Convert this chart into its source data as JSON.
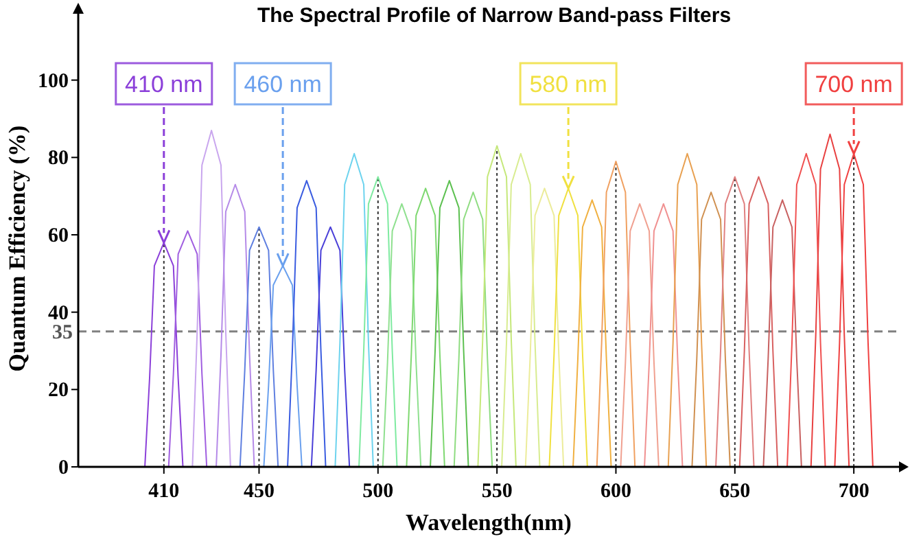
{
  "chart_data": {
    "type": "line",
    "title": "The Spectral Profile of Narrow Band-pass Filters",
    "xlabel": "Wavelength(nm)",
    "ylabel": "Quantum Efficiency (%)",
    "xlim": [
      374,
      719
    ],
    "xticks": [
      410,
      450,
      500,
      550,
      600,
      650,
      700
    ],
    "ylim": [
      0,
      120
    ],
    "yticks": [
      0,
      20,
      40,
      60,
      80,
      100
    ],
    "marker": "none",
    "line_style": "solid",
    "grid": false,
    "ref_lines": [
      {
        "axis": "y",
        "value": 35,
        "label": "35",
        "color": "#808080",
        "line_style": "dashed"
      },
      {
        "axis": "x",
        "value": 410,
        "color": "#333333",
        "line_style": "dotted"
      },
      {
        "axis": "x",
        "value": 450,
        "color": "#333333",
        "line_style": "dotted"
      },
      {
        "axis": "x",
        "value": 500,
        "color": "#333333",
        "line_style": "dotted"
      },
      {
        "axis": "x",
        "value": 550,
        "color": "#333333",
        "line_style": "dotted"
      },
      {
        "axis": "x",
        "value": 600,
        "color": "#333333",
        "line_style": "dotted"
      },
      {
        "axis": "x",
        "value": 650,
        "color": "#333333",
        "line_style": "dotted"
      },
      {
        "axis": "x",
        "value": 700,
        "color": "#333333",
        "line_style": "dotted"
      }
    ],
    "annotations": [
      {
        "text": "410 nm",
        "x": 410,
        "y": 58
      },
      {
        "text": "460 nm",
        "x": 460,
        "y": 52
      },
      {
        "text": "580 nm",
        "x": 580,
        "y": 72
      },
      {
        "text": "700 nm",
        "x": 700,
        "y": 81
      }
    ],
    "series": [
      {
        "color": "#8b3fd9",
        "x": [
          402,
          404,
          406,
          410,
          414,
          416,
          418
        ],
        "values": [
          0,
          23,
          52,
          58,
          52,
          23,
          0
        ]
      },
      {
        "color": "#a05ee0",
        "x": [
          412,
          414,
          416,
          420,
          424,
          426,
          428
        ],
        "values": [
          0,
          24,
          55,
          61,
          55,
          24,
          0
        ]
      },
      {
        "color": "#c9a6ee",
        "x": [
          422,
          424,
          426,
          430,
          434,
          436,
          438
        ],
        "values": [
          0,
          35,
          78,
          87,
          78,
          35,
          0
        ]
      },
      {
        "color": "#b58ae8",
        "x": [
          432,
          434,
          436,
          440,
          444,
          446,
          448
        ],
        "values": [
          0,
          29,
          66,
          73,
          66,
          29,
          0
        ]
      },
      {
        "color": "#5f7fe0",
        "x": [
          442,
          444,
          446,
          450,
          454,
          456,
          458
        ],
        "values": [
          0,
          25,
          56,
          62,
          56,
          25,
          0
        ]
      },
      {
        "color": "#6aa0ee",
        "x": [
          452,
          454,
          456,
          460,
          464,
          466,
          468
        ],
        "values": [
          0,
          21,
          47,
          52,
          47,
          21,
          0
        ]
      },
      {
        "color": "#3a5ce0",
        "x": [
          462,
          464,
          466,
          470,
          474,
          476,
          478
        ],
        "values": [
          0,
          30,
          67,
          74,
          67,
          30,
          0
        ]
      },
      {
        "color": "#4a3fd8",
        "x": [
          472,
          474,
          476,
          480,
          484,
          486,
          488
        ],
        "values": [
          0,
          25,
          56,
          62,
          56,
          25,
          0
        ]
      },
      {
        "color": "#6dd3ee",
        "x": [
          482,
          484,
          486,
          490,
          494,
          496,
          498
        ],
        "values": [
          0,
          32,
          73,
          81,
          73,
          32,
          0
        ]
      },
      {
        "color": "#7eeaa0",
        "x": [
          492,
          494,
          496,
          500,
          504,
          506,
          508
        ],
        "values": [
          0,
          30,
          68,
          75,
          68,
          30,
          0
        ]
      },
      {
        "color": "#8fe08f",
        "x": [
          502,
          504,
          506,
          510,
          514,
          516,
          518
        ],
        "values": [
          0,
          27,
          61,
          68,
          61,
          27,
          0
        ]
      },
      {
        "color": "#7ed870",
        "x": [
          512,
          514,
          516,
          520,
          524,
          526,
          528
        ],
        "values": [
          0,
          29,
          65,
          72,
          65,
          29,
          0
        ]
      },
      {
        "color": "#5cc050",
        "x": [
          522,
          524,
          526,
          530,
          534,
          536,
          538
        ],
        "values": [
          0,
          30,
          67,
          74,
          67,
          30,
          0
        ]
      },
      {
        "color": "#8edc80",
        "x": [
          532,
          534,
          536,
          540,
          544,
          546,
          548
        ],
        "values": [
          0,
          28,
          64,
          71,
          64,
          28,
          0
        ]
      },
      {
        "color": "#c5e87a",
        "x": [
          542,
          544,
          546,
          550,
          554,
          556,
          558
        ],
        "values": [
          0,
          33,
          75,
          83,
          75,
          33,
          0
        ]
      },
      {
        "color": "#d8ec90",
        "x": [
          552,
          554,
          556,
          560,
          564,
          566,
          568
        ],
        "values": [
          0,
          32,
          73,
          81,
          73,
          32,
          0
        ]
      },
      {
        "color": "#ecec9a",
        "x": [
          562,
          564,
          566,
          570,
          574,
          576,
          578
        ],
        "values": [
          0,
          29,
          65,
          72,
          65,
          29,
          0
        ]
      },
      {
        "color": "#f0e040",
        "x": [
          572,
          574,
          576,
          580,
          584,
          586,
          588
        ],
        "values": [
          0,
          29,
          65,
          72,
          65,
          29,
          0
        ]
      },
      {
        "color": "#f0b040",
        "x": [
          582,
          584,
          586,
          590,
          594,
          596,
          598
        ],
        "values": [
          0,
          28,
          62,
          69,
          62,
          28,
          0
        ]
      },
      {
        "color": "#f0a060",
        "x": [
          592,
          594,
          596,
          600,
          604,
          606,
          608
        ],
        "values": [
          0,
          32,
          71,
          79,
          71,
          32,
          0
        ]
      },
      {
        "color": "#f0a090",
        "x": [
          602,
          604,
          606,
          610,
          614,
          616,
          618
        ],
        "values": [
          0,
          27,
          61,
          68,
          61,
          27,
          0
        ]
      },
      {
        "color": "#f09090",
        "x": [
          612,
          614,
          616,
          620,
          624,
          626,
          628
        ],
        "values": [
          0,
          27,
          61,
          68,
          61,
          27,
          0
        ]
      },
      {
        "color": "#e8a050",
        "x": [
          622,
          624,
          626,
          630,
          634,
          636,
          638
        ],
        "values": [
          0,
          32,
          73,
          81,
          73,
          32,
          0
        ]
      },
      {
        "color": "#d09050",
        "x": [
          632,
          634,
          636,
          640,
          644,
          646,
          648
        ],
        "values": [
          0,
          28,
          64,
          71,
          64,
          28,
          0
        ]
      },
      {
        "color": "#e08080",
        "x": [
          642,
          644,
          646,
          650,
          654,
          656,
          658
        ],
        "values": [
          0,
          30,
          68,
          75,
          68,
          30,
          0
        ]
      },
      {
        "color": "#d86060",
        "x": [
          652,
          654,
          656,
          660,
          664,
          666,
          668
        ],
        "values": [
          0,
          30,
          68,
          75,
          68,
          30,
          0
        ]
      },
      {
        "color": "#c86060",
        "x": [
          662,
          664,
          666,
          670,
          674,
          676,
          678
        ],
        "values": [
          0,
          28,
          62,
          69,
          62,
          28,
          0
        ]
      },
      {
        "color": "#f05050",
        "x": [
          672,
          674,
          676,
          680,
          684,
          686,
          688
        ],
        "values": [
          0,
          32,
          73,
          81,
          73,
          32,
          0
        ]
      },
      {
        "color": "#e84040",
        "x": [
          682,
          684,
          686,
          690,
          694,
          696,
          698
        ],
        "values": [
          0,
          34,
          77,
          86,
          77,
          34,
          0
        ]
      },
      {
        "color": "#f04040",
        "x": [
          692,
          694,
          696,
          700,
          704,
          706,
          708
        ],
        "values": [
          0,
          32,
          73,
          81,
          73,
          32,
          0
        ]
      }
    ]
  }
}
